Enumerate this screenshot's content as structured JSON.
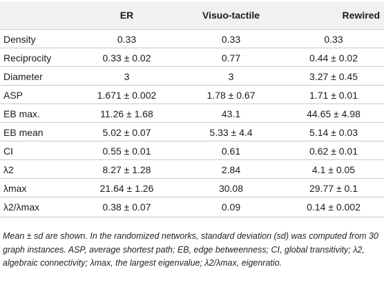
{
  "table": {
    "headers": [
      "",
      "ER",
      "Visuo-tactile",
      "Rewired"
    ],
    "rows": [
      {
        "label": "Density",
        "values": [
          "0.33",
          "0.33",
          "0.33"
        ]
      },
      {
        "label": "Reciprocity",
        "values": [
          "0.33 ± 0.02",
          "0.77",
          "0.44 ± 0.02"
        ]
      },
      {
        "label": "Diameter",
        "values": [
          "3",
          "3",
          "3.27 ± 0.45"
        ]
      },
      {
        "label": "ASP",
        "values": [
          "1.671 ± 0.002",
          "1.78 ± 0.67",
          "1.71 ± 0.01"
        ]
      },
      {
        "label": "EB max.",
        "values": [
          "11.26 ± 1.68",
          "43.1",
          "44.65 ± 4.98"
        ]
      },
      {
        "label": "EB mean",
        "values": [
          "5.02 ± 0.07",
          "5.33 ± 4.4",
          "5.14 ± 0.03"
        ]
      },
      {
        "label": "CI",
        "values": [
          "0.55 ± 0.01",
          "0.61",
          "0.62 ± 0.01"
        ]
      },
      {
        "label": "λ2",
        "values": [
          "8.27 ± 1.28",
          "2.84",
          "4.1 ± 0.05"
        ]
      },
      {
        "label": "λmax",
        "values": [
          "21.64 ± 1.26",
          "30.08",
          "29.77 ± 0.1"
        ]
      },
      {
        "label": "λ2/λmax",
        "values": [
          "0.38 ± 0.07",
          "0.09",
          "0.14 ± 0.002"
        ]
      }
    ]
  },
  "caption": "Mean ± sd are shown. In the randomized networks, standard deviation (sd) was computed from 30 graph instances. ASP, average shortest path; EB, edge betweenness; CI, global transitivity; λ2, algebraic connectivity; λmax, the largest eigenvalue; λ2/λmax, eigenratio."
}
